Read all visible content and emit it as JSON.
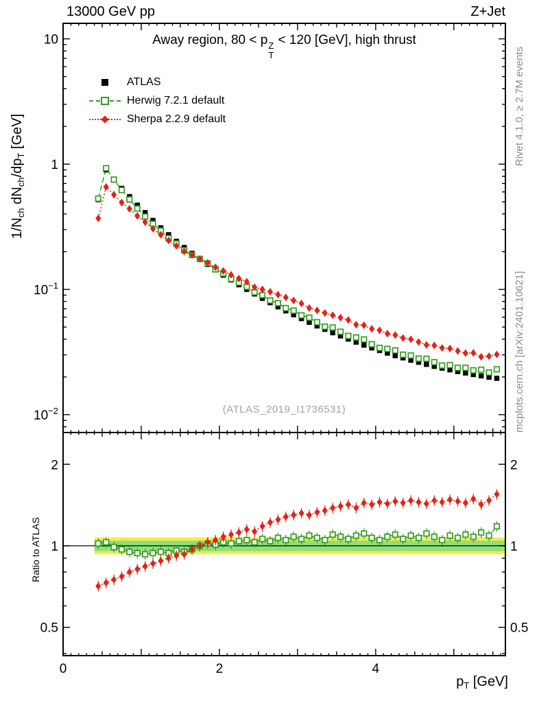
{
  "labels": {
    "header_left": "13000 GeV pp",
    "header_right": "Z+Jet",
    "title_pre": "Away region, 80 < p",
    "title_sup": "Z",
    "title_sub": "T",
    "title_post": " < 120 [GeV], high thrust",
    "watermark": "(ATLAS_2019_I1736531)",
    "rivet_note": "Rivet 4.1.0, ≥ 2.7M events",
    "mcplots_note": "mcplots.cern.ch [arXiv:2401.10621]",
    "ylabel_parts": [
      "1/N",
      "ch",
      " dN",
      "ch",
      "/dp",
      "T",
      " [GeV]"
    ],
    "ratio_ylabel": "Ratio to ATLAS",
    "xlabel_base": "p",
    "xlabel_sub": "T",
    "xlabel_post": " [GeV]"
  },
  "chart_data": {
    "type": "scatter",
    "title": "Away region, 80 < pT(Z) < 120 [GeV], high thrust",
    "xlabel": "pT [GeV]",
    "ylabel": "1/Nch dNch/dpT [GeV]",
    "ratio_label": "Ratio to ATLAS",
    "legend_position": "top-left",
    "grid": false,
    "axes": {
      "x": {
        "range": [
          0,
          5.66
        ],
        "minor_step": 0.1,
        "labeled": [
          {
            "v": 0,
            "t": "0"
          },
          {
            "v": 2,
            "t": "2"
          },
          {
            "v": 4,
            "t": "4"
          }
        ]
      },
      "y_main": {
        "range": [
          0.0072,
          13.3
        ],
        "scale": "log",
        "majors": [
          {
            "v": 10,
            "base": "10",
            "exp": ""
          },
          {
            "v": 1,
            "base": "1",
            "exp": ""
          },
          {
            "v": 0.1,
            "base": "10",
            "exp": "−1"
          },
          {
            "v": 0.01,
            "base": "10",
            "exp": "−2"
          }
        ]
      },
      "y_ratio": {
        "range": [
          0.393,
          2.62
        ],
        "scale": "log",
        "majors": [
          {
            "v": 2,
            "t": "2"
          },
          {
            "v": 1,
            "t": "1"
          },
          {
            "v": 0.5,
            "t": "0.5"
          }
        ],
        "minors": [
          0.4,
          0.6,
          0.7,
          0.8,
          0.9
        ]
      }
    },
    "series": [
      {
        "name": "ATLAS",
        "color": "#000000",
        "marker": "filled-square",
        "line": "none"
      },
      {
        "name": "Herwig 7.2.1 default",
        "color": "#2f9e1f",
        "marker": "open-square",
        "line": "dashed"
      },
      {
        "name": "Sherpa 2.2.9 default",
        "color": "#e42217",
        "marker": "filled-diamond",
        "line": "dotted"
      }
    ],
    "bands": {
      "x_start": 0.4,
      "yellow": {
        "lo": 0.93,
        "hi": 1.075,
        "color": "#ffe84d"
      },
      "green": {
        "lo": 0.955,
        "hi": 1.045,
        "color": "#8de07a"
      }
    },
    "err_frac_main": 0.04,
    "err_frac_ratio": 0.045,
    "x": [
      0.45,
      0.55,
      0.65,
      0.75,
      0.85,
      0.95,
      1.05,
      1.15,
      1.25,
      1.35,
      1.45,
      1.55,
      1.65,
      1.75,
      1.85,
      1.95,
      2.05,
      2.15,
      2.25,
      2.35,
      2.45,
      2.55,
      2.65,
      2.75,
      2.85,
      2.95,
      3.05,
      3.15,
      3.25,
      3.35,
      3.45,
      3.55,
      3.65,
      3.75,
      3.85,
      3.95,
      4.05,
      4.15,
      4.25,
      4.35,
      4.45,
      4.55,
      4.65,
      4.75,
      4.85,
      4.95,
      5.05,
      5.15,
      5.25,
      5.35,
      5.45,
      5.55
    ],
    "values": {
      "atlas": [
        0.52,
        0.9,
        0.76,
        0.64,
        0.55,
        0.47,
        0.41,
        0.355,
        0.31,
        0.273,
        0.242,
        0.216,
        0.194,
        0.175,
        0.158,
        0.143,
        0.13,
        0.119,
        0.109,
        0.1,
        0.092,
        0.0848,
        0.0784,
        0.0726,
        0.0674,
        0.0627,
        0.0585,
        0.0546,
        0.0511,
        0.048,
        0.0451,
        0.0425,
        0.0401,
        0.0379,
        0.0359,
        0.0341,
        0.0325,
        0.031,
        0.0296,
        0.0284,
        0.0272,
        0.0262,
        0.0252,
        0.0243,
        0.0235,
        0.0228,
        0.0221,
        0.0215,
        0.0209,
        0.0204,
        0.0199,
        0.0195
      ],
      "herwig_ratio": [
        1.02,
        1.03,
        0.99,
        0.97,
        0.95,
        0.94,
        0.93,
        0.94,
        0.95,
        0.94,
        0.96,
        0.95,
        0.97,
        1.0,
        1.02,
        1.01,
        1.03,
        1.02,
        1.04,
        1.05,
        1.03,
        1.06,
        1.04,
        1.07,
        1.05,
        1.08,
        1.06,
        1.09,
        1.07,
        1.05,
        1.1,
        1.08,
        1.06,
        1.09,
        1.11,
        1.07,
        1.05,
        1.08,
        1.1,
        1.06,
        1.09,
        1.07,
        1.11,
        1.08,
        1.05,
        1.09,
        1.07,
        1.1,
        1.08,
        1.12,
        1.09,
        1.18
      ],
      "sherpa_ratio": [
        0.71,
        0.73,
        0.75,
        0.77,
        0.8,
        0.82,
        0.84,
        0.86,
        0.88,
        0.9,
        0.92,
        0.93,
        0.97,
        1.0,
        1.03,
        1.05,
        1.08,
        1.1,
        1.12,
        1.15,
        1.13,
        1.18,
        1.22,
        1.25,
        1.28,
        1.3,
        1.32,
        1.3,
        1.33,
        1.35,
        1.38,
        1.4,
        1.42,
        1.38,
        1.44,
        1.42,
        1.45,
        1.43,
        1.46,
        1.44,
        1.47,
        1.45,
        1.43,
        1.47,
        1.45,
        1.48,
        1.46,
        1.44,
        1.49,
        1.42,
        1.47,
        1.55
      ]
    },
    "note": "herwig and sherpa main-panel values equal atlas value times the corresponding ratio"
  }
}
